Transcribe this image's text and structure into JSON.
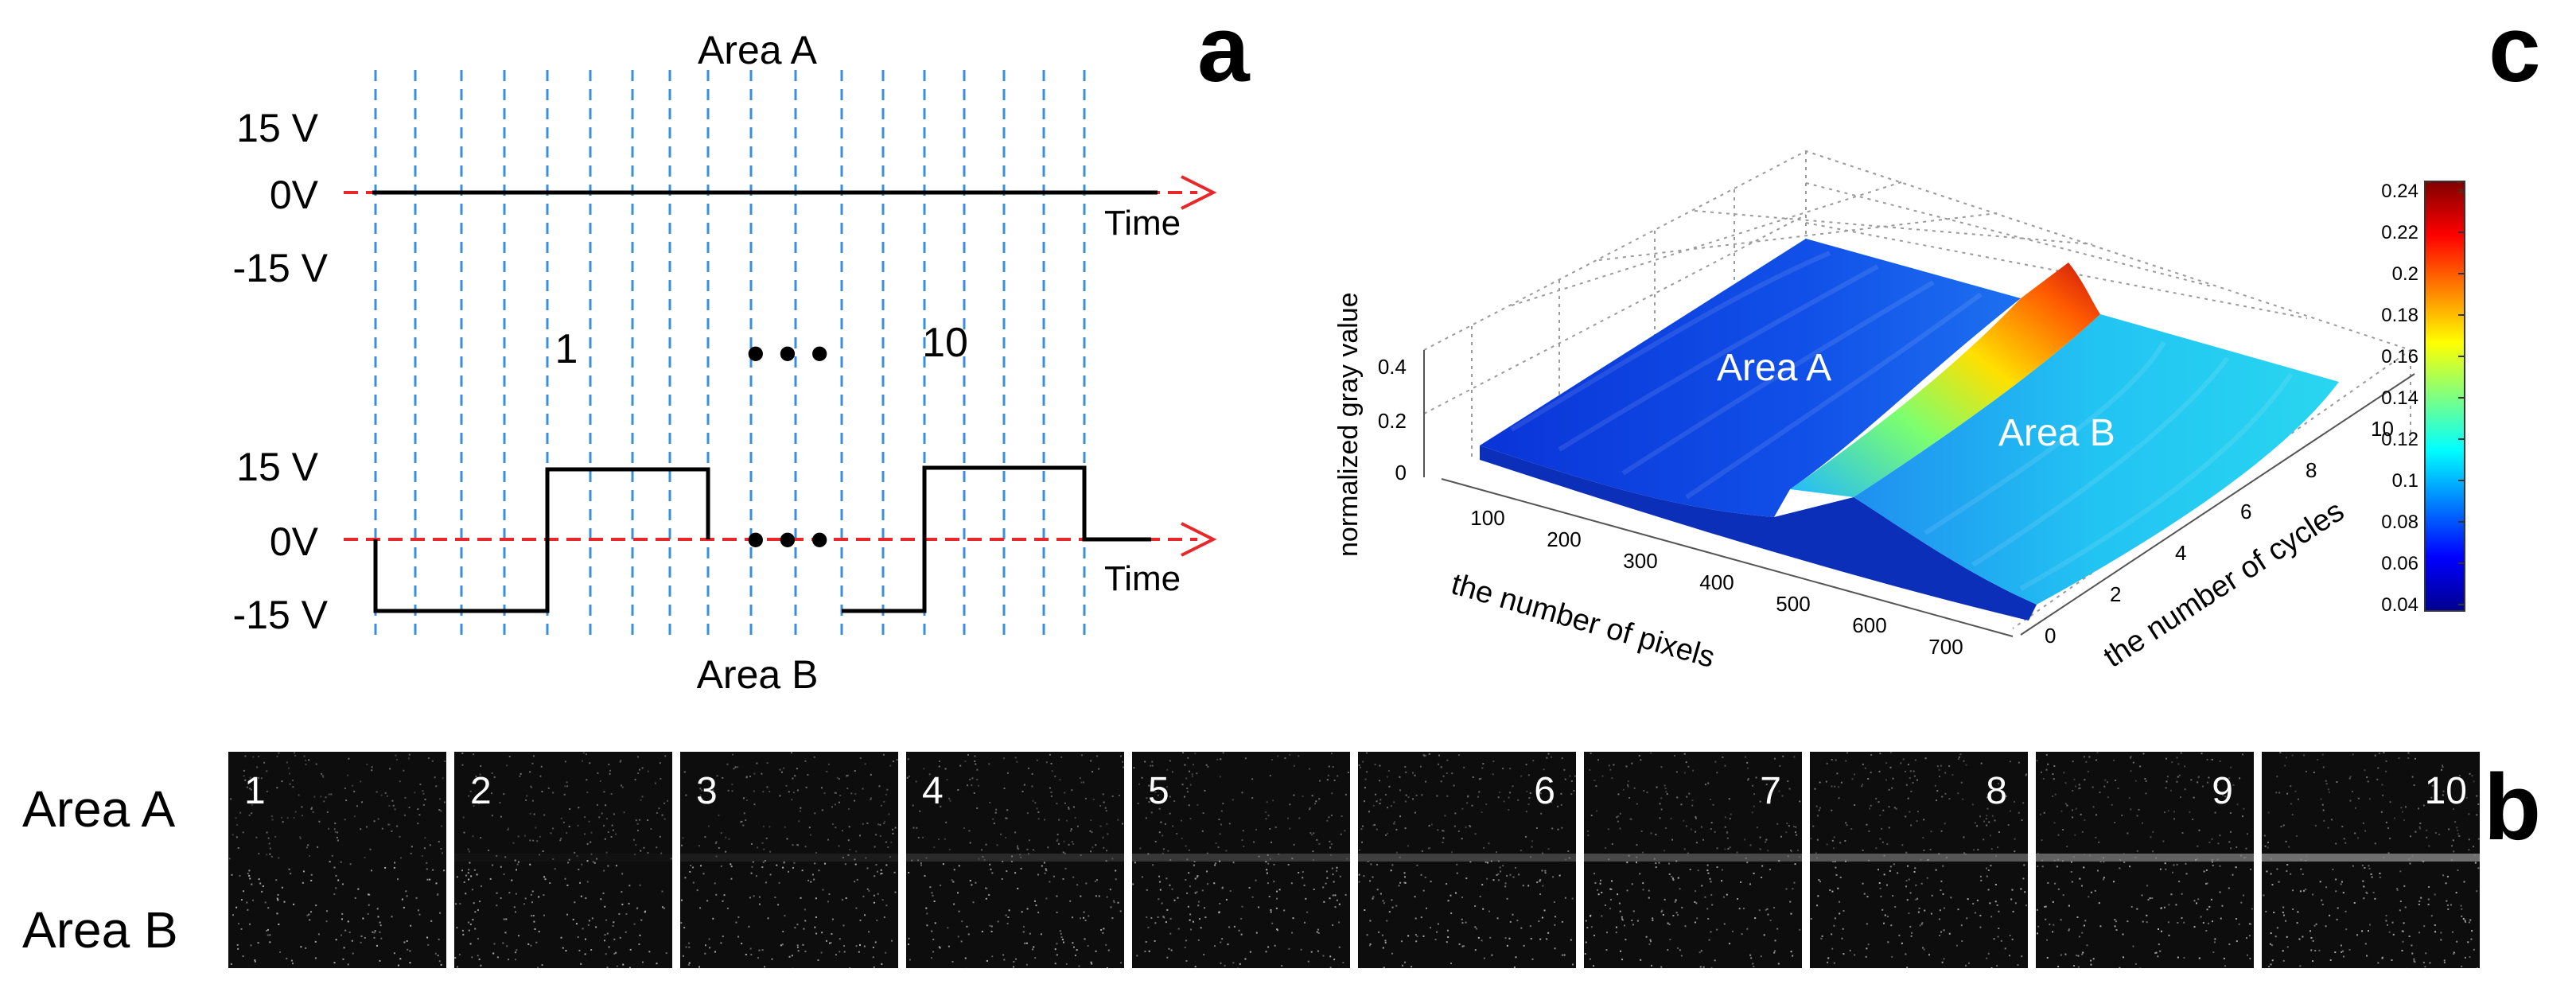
{
  "panel_labels": {
    "a": "a",
    "b": "b",
    "c": "c"
  },
  "panel_a": {
    "top_title": "Area A",
    "bottom_title": "Area B",
    "top_levels": [
      "15 V",
      "0V",
      "-15 V"
    ],
    "bottom_levels": [
      "15 V",
      "0V",
      "-15 V"
    ],
    "time_label": "Time",
    "time_label_2": "Time",
    "cycle_first": "1",
    "cycle_last": "10",
    "ellipsis": "• • •",
    "colors": {
      "axis": "#e8272a",
      "grid": "#3b8fd6",
      "signal": "#000000"
    }
  },
  "panel_b": {
    "row_labels": [
      "Area A",
      "Area B"
    ],
    "frames": [
      "1",
      "2",
      "3",
      "4",
      "5",
      "6",
      "7",
      "8",
      "9",
      "10"
    ],
    "band_intensity": [
      0.0,
      0.02,
      0.05,
      0.1,
      0.14,
      0.17,
      0.2,
      0.24,
      0.28,
      0.33
    ]
  },
  "chart_data": {
    "type": "surface",
    "title": "",
    "zlabel": "normalized gray value",
    "xlabel": "the number of pixels",
    "ylabel": "the number of cycles",
    "x_ticks": [
      "100",
      "200",
      "300",
      "400",
      "500",
      "600",
      "700"
    ],
    "y_ticks": [
      "0",
      "2",
      "4",
      "6",
      "8",
      "10"
    ],
    "z_ticks": [
      "0",
      "0.2",
      "0.4"
    ],
    "zlim": [
      0,
      0.4
    ],
    "region_labels": [
      "Area A",
      "Area B"
    ],
    "colorbar": {
      "ticks": [
        "0.24",
        "0.22",
        "0.2",
        "0.18",
        "0.16",
        "0.14",
        "0.12",
        "0.1",
        "0.08",
        "0.06",
        "0.04"
      ],
      "range": [
        0.04,
        0.24
      ],
      "colormap": "jet"
    },
    "peak_value": 0.24
  }
}
